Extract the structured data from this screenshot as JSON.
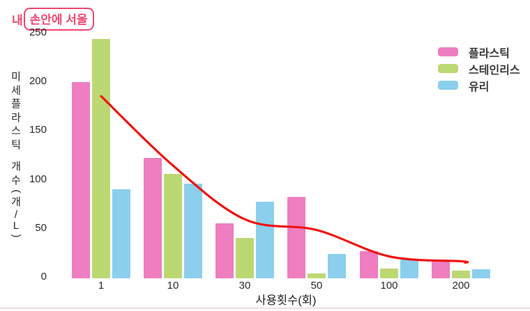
{
  "logo": {
    "prefix": "내",
    "boxed": "손안에 서울",
    "color": "#f1486f"
  },
  "chart_data": {
    "type": "bar",
    "title": "",
    "categories": [
      "1",
      "10",
      "30",
      "50",
      "100",
      "200"
    ],
    "series": [
      {
        "name": "플라스틱",
        "color": "#ee7ec0",
        "values": [
          201,
          123,
          56,
          83,
          28,
          18
        ]
      },
      {
        "name": "스테인리스",
        "color": "#bcd873",
        "values": [
          245,
          107,
          41,
          5,
          10,
          8
        ]
      },
      {
        "name": "유리",
        "color": "#8bcfec",
        "values": [
          91,
          97,
          78,
          25,
          19,
          9
        ]
      }
    ],
    "trend_line": {
      "color": "#ee1411",
      "values": [
        185,
        114,
        59,
        48,
        21,
        16
      ]
    },
    "xlabel": "사용횟수(회)",
    "ylabel": "미세플라스틱 개수(개/L)",
    "yticks": [
      0,
      50,
      100,
      150,
      200,
      250
    ],
    "ylim": [
      0,
      250
    ],
    "grid": false,
    "legend_position": "top-right"
  }
}
